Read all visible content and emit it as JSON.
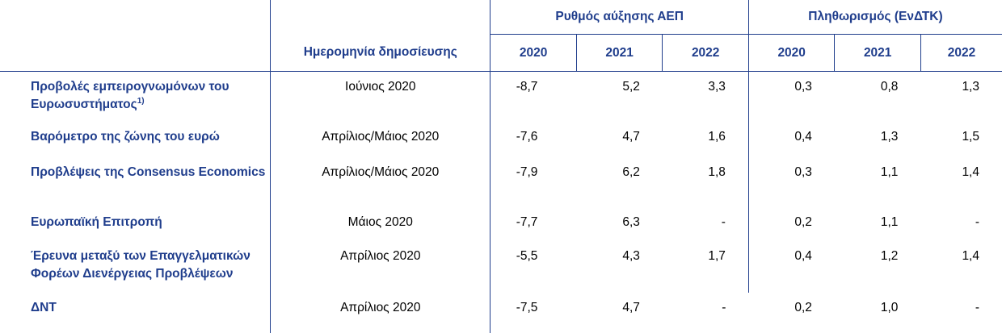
{
  "header": {
    "date_column": "Ημερομηνία δημοσίευσης",
    "groups": [
      {
        "label": "Ρυθμός αύξησης ΑΕΠ"
      },
      {
        "label": "Πληθωρισμός (ΕνΔΤΚ)"
      }
    ],
    "years": [
      "2020",
      "2021",
      "2022",
      "2020",
      "2021",
      "2022"
    ]
  },
  "rows": [
    {
      "label": "Προβολές εμπειρογνωμόνων του Ευρωσυστήματος",
      "footnote": "1)",
      "date": "Ιούνιος 2020",
      "values": [
        "-8,7",
        "5,2",
        "3,3",
        "0,3",
        "0,8",
        "1,3"
      ]
    },
    {
      "label": "Βαρόμετρο της ζώνης του ευρώ",
      "date": "Απρίλιος/Μάιος 2020",
      "values": [
        "-7,6",
        "4,7",
        "1,6",
        "0,4",
        "1,3",
        "1,5"
      ]
    },
    {
      "label": "Προβλέψεις της Consensus Economics",
      "date": "Απρίλιος/Μάιος 2020",
      "values": [
        "-7,9",
        "6,2",
        "1,8",
        "0,3",
        "1,1",
        "1,4"
      ]
    },
    {
      "label": "Ευρωπαϊκή Επιτροπή",
      "date": "Μάιος 2020",
      "values": [
        "-7,7",
        "6,3",
        "-",
        "0,2",
        "1,1",
        "-"
      ]
    },
    {
      "label": "Έρευνα μεταξύ των Επαγγελματικών Φορέων Διενέργειας Προβλέψεων",
      "date": "Απρίλιος 2020",
      "values": [
        "-5,5",
        "4,3",
        "1,7",
        "0,4",
        "1,2",
        "1,4"
      ]
    },
    {
      "label": "ΔΝΤ",
      "date": "Απρίλιος 2020",
      "values": [
        "-7,5",
        "4,7",
        "-",
        "0,2",
        "1,0",
        "-"
      ]
    }
  ]
}
